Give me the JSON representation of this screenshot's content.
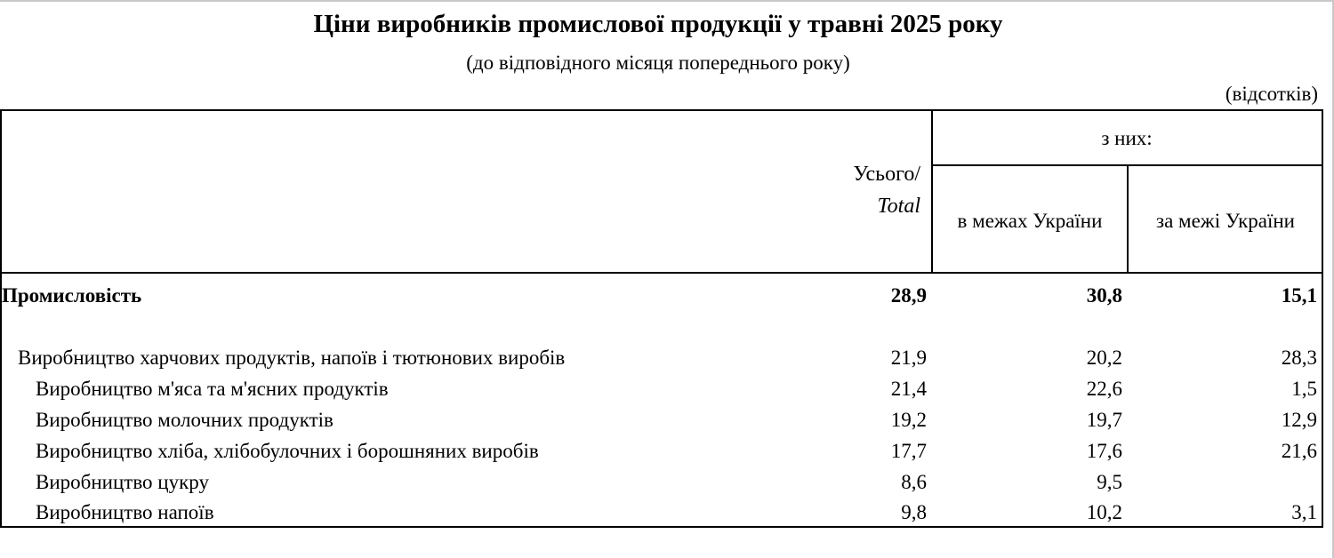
{
  "title": "Ціни виробників промислової продукції у травні 2025 року",
  "subtitle": "(до відповідного місяця попереднього року)",
  "unit": "(відсотків)",
  "headers": {
    "total_line1": "Усього/",
    "total_line2": "Total",
    "of_them": "з них:",
    "domestic": "в межах України",
    "abroad": "за межі України"
  },
  "rows": [
    {
      "label": "Промисловість",
      "total": "28,9",
      "domestic": "30,8",
      "abroad": "15,1"
    },
    {
      "label": "Виробництво харчових продуктів, напоїв і тютюнових виробів",
      "total": "21,9",
      "domestic": "20,2",
      "abroad": "28,3"
    },
    {
      "label": "Виробництво м'яса та м'ясних продуктів",
      "total": "21,4",
      "domestic": "22,6",
      "abroad": "1,5"
    },
    {
      "label": "Виробництво молочних продуктів",
      "total": "19,2",
      "domestic": "19,7",
      "abroad": "12,9"
    },
    {
      "label": "Виробництво хліба, хлібобулочних і борошняних виробів",
      "total": "17,7",
      "domestic": "17,6",
      "abroad": "21,6"
    },
    {
      "label": "Виробництво цукру",
      "total": "8,6",
      "domestic": "9,5",
      "abroad": ""
    },
    {
      "label": "Виробництво напоїв",
      "total": "9,8",
      "domestic": "10,2",
      "abroad": "3,1"
    }
  ]
}
